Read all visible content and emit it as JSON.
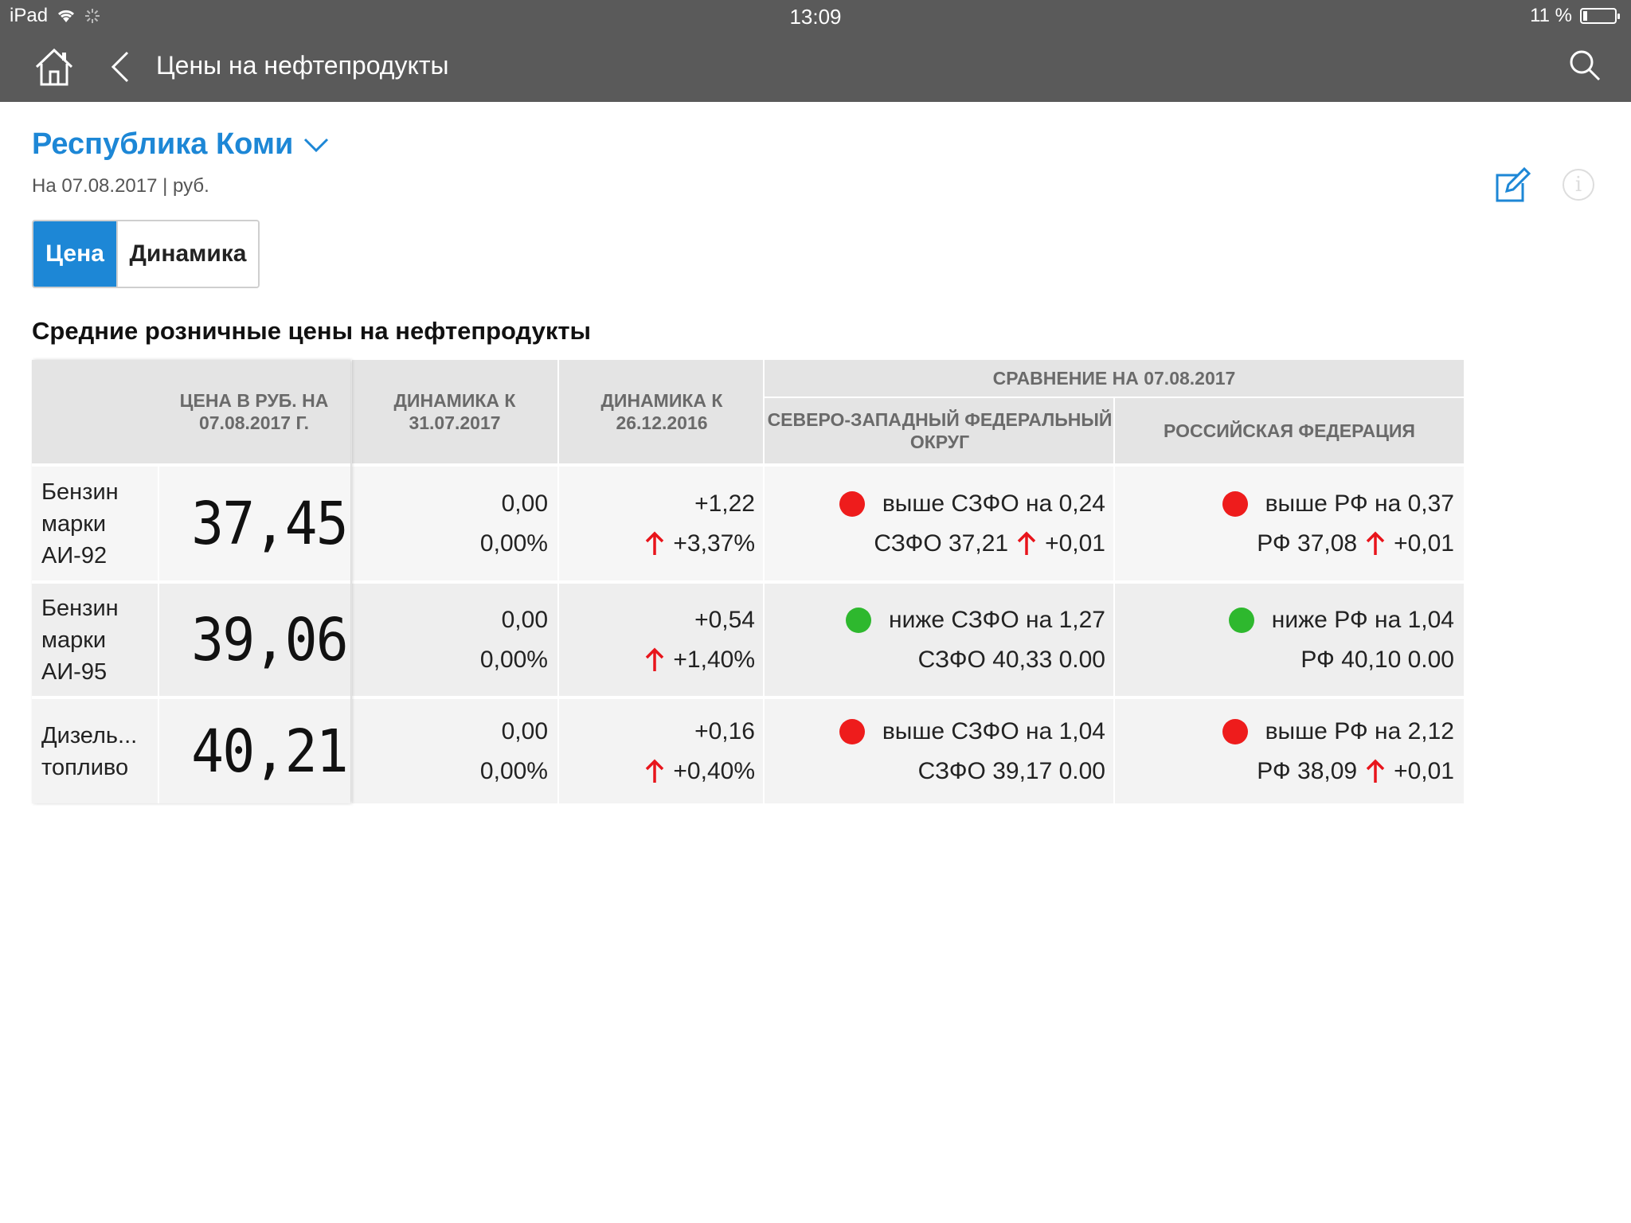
{
  "status": {
    "device": "iPad",
    "time": "13:09",
    "battery": "11 %",
    "battery_level": 0.11
  },
  "nav": {
    "title": "Цены на нефтепродукты"
  },
  "header": {
    "region": "Республика Коми",
    "subtitle": "На 07.08.2017 | руб."
  },
  "tabs": [
    {
      "label": "Цена",
      "active": true
    },
    {
      "label": "Динамика",
      "active": false
    }
  ],
  "section_title": "Средние розничные цены на нефтепродукты",
  "table": {
    "headers": {
      "price": "ЦЕНА В РУБ. НА 07.08.2017 Г.",
      "dyn1": "ДИНАМИКА К 31.07.2017",
      "dyn2": "ДИНАМИКА К 26.12.2016",
      "compare": "СРАВНЕНИЕ НА 07.08.2017",
      "szfo": "СЕВЕРО-ЗАПАДНЫЙ ФЕДЕРАЛЬНЫЙ ОКРУГ",
      "rf": "РОССИЙСКАЯ ФЕДЕРАЦИЯ"
    },
    "rows": [
      {
        "name": "Бензин марки АИ-92",
        "price": "37,45",
        "dyn1_abs": "0,00",
        "dyn1_pct": "0,00%",
        "dyn2_abs": "+1,22",
        "dyn2_pct": "+3,37%",
        "szfo_status": "выше СЗФО на 0,24",
        "szfo_status_color": "#ee1c1c",
        "szfo_label": "СЗФО 37,21",
        "szfo_delta": "+0,01",
        "rf_status": "выше РФ на 0,37",
        "rf_status_color": "#ee1c1c",
        "rf_label": "РФ 37,08",
        "rf_delta": "+0,01"
      },
      {
        "name": "Бензин марки АИ-95",
        "price": "39,06",
        "dyn1_abs": "0,00",
        "dyn1_pct": "0,00%",
        "dyn2_abs": "+0,54",
        "dyn2_pct": "+1,40%",
        "szfo_status": "ниже СЗФО на 1,27",
        "szfo_status_color": "#2eb82e",
        "szfo_label": "СЗФО 40,33 0.00",
        "szfo_delta": "",
        "rf_status": "ниже РФ на 1,04",
        "rf_status_color": "#2eb82e",
        "rf_label": "РФ 40,10 0.00",
        "rf_delta": ""
      },
      {
        "name": "Дизель... топливо",
        "price": "40,21",
        "dyn1_abs": "0,00",
        "dyn1_pct": "0,00%",
        "dyn2_abs": "+0,16",
        "dyn2_pct": "+0,40%",
        "szfo_status": "выше СЗФО на 1,04",
        "szfo_status_color": "#ee1c1c",
        "szfo_label": "СЗФО 39,17 0.00",
        "szfo_delta": "",
        "rf_status": "выше РФ на 2,12",
        "rf_status_color": "#ee1c1c",
        "rf_label": "РФ 38,09",
        "rf_delta": "+0,01"
      }
    ]
  },
  "colors": {
    "accent": "#1d87d6",
    "up_arrow": "#e8141b",
    "red_dot": "#ee1c1c",
    "green_dot": "#2eb82e",
    "nav_bg": "#5a5a5a"
  },
  "icons": {
    "home": "home-icon",
    "back": "chevron-left-icon",
    "search": "search-icon",
    "edit": "edit-icon",
    "info": "info-icon",
    "dropdown": "chevron-down-icon",
    "up": "arrow-up-icon"
  }
}
